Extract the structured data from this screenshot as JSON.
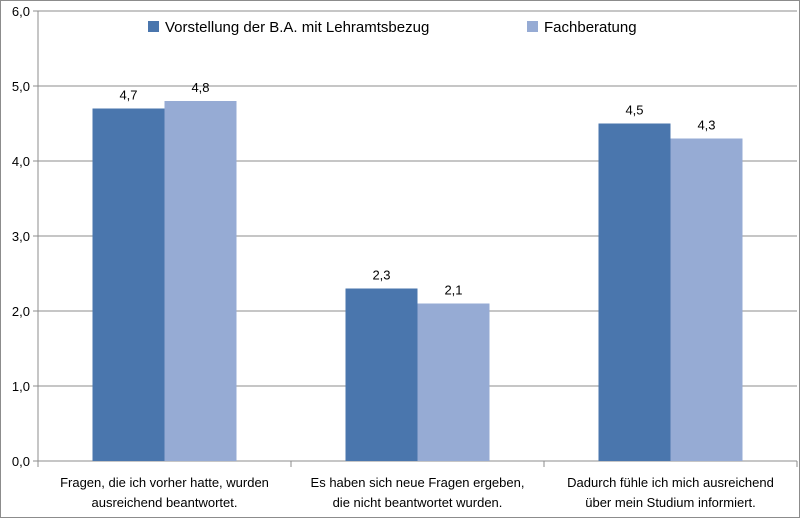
{
  "chart_data": {
    "type": "bar",
    "title": "",
    "xlabel": "",
    "ylabel": "",
    "ylim": [
      0,
      6
    ],
    "yticks": [
      "0,0",
      "1,0",
      "2,0",
      "3,0",
      "4,0",
      "5,0",
      "6,0"
    ],
    "grid": "horizontal",
    "legend_position": "top",
    "categories": [
      [
        "Fragen, die ich vorher hatte, wurden",
        "ausreichend beantwortet."
      ],
      [
        "Es haben sich neue Fragen ergeben,",
        "die nicht beantwortet wurden."
      ],
      [
        "Dadurch fühle ich mich ausreichend",
        "über mein Studium informiert."
      ]
    ],
    "series": [
      {
        "name": "Vorstellung der B.A. mit Lehramtsbezug",
        "color": "#4a76ad",
        "values": [
          4.7,
          2.3,
          4.5
        ],
        "labels": [
          "4,7",
          "2,3",
          "4,5"
        ]
      },
      {
        "name": "Fachberatung",
        "color": "#96abd4",
        "values": [
          4.8,
          2.1,
          4.3
        ],
        "labels": [
          "4,8",
          "2,1",
          "4,3"
        ]
      }
    ]
  }
}
